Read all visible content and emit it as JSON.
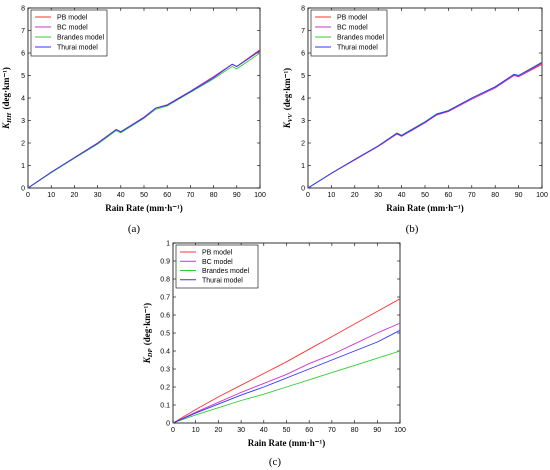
{
  "series_styles": [
    {
      "name": "PB model",
      "color": "#ff3030"
    },
    {
      "name": "BC model",
      "color": "#cc33cc"
    },
    {
      "name": "Brandes model",
      "color": "#33cc33"
    },
    {
      "name": "Thurai model",
      "color": "#3333ff"
    }
  ],
  "chart_data": [
    {
      "type": "line",
      "caption": "(a)",
      "xlabel": "Rain Rate (mm·h⁻¹)",
      "ylabel_main": "K",
      "ylabel_sub": "HH",
      "ylabel_unit": "(deg·km⁻¹)",
      "xlim": [
        0,
        100
      ],
      "ylim": [
        0,
        8
      ],
      "xticks": [
        0,
        10,
        20,
        30,
        40,
        50,
        60,
        70,
        80,
        90,
        100
      ],
      "yticks": [
        0,
        1,
        2,
        3,
        4,
        5,
        6,
        7,
        8
      ],
      "legend_position": "top-left",
      "x": [
        0,
        10,
        20,
        30,
        38,
        40,
        50,
        55,
        60,
        70,
        80,
        88,
        90,
        100
      ],
      "series": [
        {
          "name": "PB model",
          "values": [
            0,
            0.7,
            1.35,
            2.0,
            2.6,
            2.5,
            3.15,
            3.55,
            3.7,
            4.3,
            4.95,
            5.5,
            5.4,
            6.15
          ]
        },
        {
          "name": "BC model",
          "values": [
            0,
            0.7,
            1.35,
            2.0,
            2.6,
            2.5,
            3.15,
            3.55,
            3.7,
            4.3,
            4.95,
            5.5,
            5.4,
            6.1
          ]
        },
        {
          "name": "Brandes model",
          "values": [
            0,
            0.68,
            1.32,
            1.95,
            2.55,
            2.45,
            3.1,
            3.5,
            3.65,
            4.25,
            4.85,
            5.4,
            5.3,
            6.0
          ]
        },
        {
          "name": "Thurai model",
          "values": [
            0,
            0.7,
            1.34,
            1.98,
            2.6,
            2.5,
            3.12,
            3.55,
            3.68,
            4.28,
            4.9,
            5.5,
            5.4,
            6.1
          ]
        }
      ]
    },
    {
      "type": "line",
      "caption": "(b)",
      "xlabel": "Rain Rate (mm·h⁻¹)",
      "ylabel_main": "K",
      "ylabel_sub": "VV",
      "ylabel_unit": "(deg·km⁻¹)",
      "xlim": [
        0,
        100
      ],
      "ylim": [
        0,
        8
      ],
      "xticks": [
        0,
        10,
        20,
        30,
        40,
        50,
        60,
        70,
        80,
        90,
        100
      ],
      "yticks": [
        0,
        1,
        2,
        3,
        4,
        5,
        6,
        7,
        8
      ],
      "legend_position": "top-left",
      "x": [
        0,
        10,
        20,
        30,
        38,
        40,
        50,
        55,
        60,
        70,
        80,
        88,
        90,
        100
      ],
      "series": [
        {
          "name": "PB model",
          "values": [
            0,
            0.65,
            1.25,
            1.85,
            2.4,
            2.3,
            2.9,
            3.25,
            3.4,
            3.95,
            4.45,
            5.0,
            4.95,
            5.5
          ]
        },
        {
          "name": "BC model",
          "values": [
            0,
            0.65,
            1.25,
            1.85,
            2.4,
            2.3,
            2.9,
            3.25,
            3.4,
            3.95,
            4.45,
            5.0,
            4.95,
            5.55
          ]
        },
        {
          "name": "Brandes model",
          "values": [
            0,
            0.66,
            1.27,
            1.87,
            2.45,
            2.35,
            2.95,
            3.3,
            3.45,
            4.0,
            4.5,
            5.05,
            5.0,
            5.6
          ]
        },
        {
          "name": "Thurai model",
          "values": [
            0,
            0.66,
            1.27,
            1.87,
            2.43,
            2.33,
            2.93,
            3.28,
            3.43,
            4.0,
            4.5,
            5.05,
            5.0,
            5.58
          ]
        }
      ]
    },
    {
      "type": "line",
      "caption": "(c)",
      "xlabel": "Rain Rate (mm·h⁻¹)",
      "ylabel_main": "K",
      "ylabel_sub": "DP",
      "ylabel_unit": "(deg·km⁻¹)",
      "xlim": [
        0,
        100
      ],
      "ylim": [
        0,
        1
      ],
      "xticks": [
        0,
        10,
        20,
        30,
        40,
        50,
        60,
        70,
        80,
        90,
        100
      ],
      "yticks": [
        0,
        0.1,
        0.2,
        0.3,
        0.4,
        0.5,
        0.6,
        0.7,
        0.8,
        0.9,
        1
      ],
      "legend_position": "top-left",
      "x": [
        0,
        10,
        20,
        30,
        40,
        50,
        60,
        70,
        80,
        90,
        100
      ],
      "series": [
        {
          "name": "PB model",
          "values": [
            0,
            0.075,
            0.145,
            0.21,
            0.275,
            0.34,
            0.41,
            0.48,
            0.55,
            0.62,
            0.69
          ]
        },
        {
          "name": "BC model",
          "values": [
            0,
            0.06,
            0.115,
            0.17,
            0.22,
            0.27,
            0.33,
            0.38,
            0.44,
            0.5,
            0.555
          ]
        },
        {
          "name": "Brandes model",
          "values": [
            0,
            0.045,
            0.085,
            0.125,
            0.16,
            0.2,
            0.24,
            0.28,
            0.32,
            0.36,
            0.4
          ]
        },
        {
          "name": "Thurai model",
          "values": [
            0,
            0.055,
            0.105,
            0.155,
            0.2,
            0.25,
            0.3,
            0.35,
            0.4,
            0.45,
            0.515
          ]
        }
      ]
    }
  ]
}
